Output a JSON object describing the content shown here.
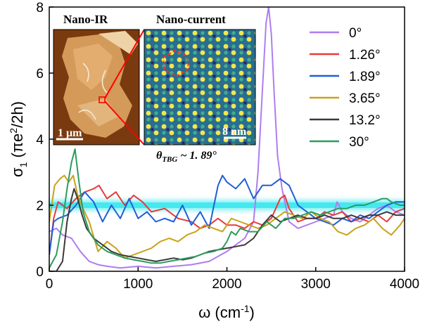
{
  "chart_data": {
    "type": "line",
    "title": "",
    "xlabel": "ω (cm",
    "xlabel_sup": "-1",
    "xlabel_close": ")",
    "ylabel": "σ",
    "ylabel_sub": "1",
    "ylabel_unit": " (πe",
    "ylabel_unit_sup": "2",
    "ylabel_unit_end": "/2h)",
    "xlim": [
      0,
      4000
    ],
    "ylim": [
      0,
      8
    ],
    "xticks": [
      0,
      1000,
      2000,
      3000,
      4000
    ],
    "yticks": [
      0,
      2,
      4,
      6,
      8
    ],
    "grid": false,
    "legend_position": "top-right",
    "universal_value": 2,
    "series": [
      {
        "name": "0°",
        "color": "#b07cf0",
        "x": [
          0,
          80,
          150,
          250,
          350,
          450,
          550,
          650,
          800,
          1000,
          1200,
          1400,
          1600,
          1800,
          2000,
          2200,
          2300,
          2350,
          2400,
          2440,
          2470,
          2500,
          2530,
          2570,
          2620,
          2700,
          2800,
          3000,
          3200,
          3240,
          3300,
          3400,
          3500,
          3600,
          3700,
          3800,
          3900,
          4000
        ],
        "y": [
          1.2,
          1.3,
          1.1,
          1.0,
          0.6,
          0.3,
          0.2,
          0.15,
          0.1,
          0.15,
          0.1,
          0.15,
          0.2,
          0.3,
          0.6,
          1.0,
          1.5,
          3.0,
          5.5,
          7.5,
          8.0,
          7.2,
          5.5,
          3.5,
          2.5,
          1.5,
          1.3,
          1.5,
          1.7,
          2.1,
          1.8,
          1.6,
          1.5,
          1.7,
          1.9,
          2.0,
          1.8,
          1.7
        ]
      },
      {
        "name": "1.26°",
        "color": "#e83a3a",
        "x": [
          0,
          50,
          100,
          200,
          300,
          400,
          500,
          560,
          650,
          750,
          850,
          950,
          1050,
          1150,
          1300,
          1450,
          1600,
          1700,
          1800,
          1900,
          2000,
          2100,
          2200,
          2300,
          2400,
          2500,
          2600,
          2650,
          2700,
          2800,
          2900,
          3000,
          3100,
          3200,
          3300,
          3400,
          3500,
          3600,
          3700,
          3800,
          3900,
          4000
        ],
        "y": [
          0.5,
          1.6,
          2.1,
          1.9,
          2.2,
          2.4,
          2.5,
          2.6,
          2.2,
          2.4,
          2.0,
          2.3,
          2.1,
          1.8,
          1.9,
          1.6,
          1.5,
          1.3,
          1.4,
          1.6,
          1.4,
          1.4,
          1.3,
          1.5,
          1.4,
          1.6,
          2.2,
          2.3,
          1.9,
          1.5,
          1.6,
          1.6,
          1.8,
          1.7,
          1.8,
          1.5,
          1.6,
          1.5,
          1.7,
          1.5,
          1.8,
          1.9
        ]
      },
      {
        "name": "1.89°",
        "color": "#1f5fd6",
        "x": [
          0,
          50,
          100,
          200,
          300,
          400,
          500,
          600,
          700,
          800,
          900,
          1000,
          1100,
          1200,
          1300,
          1400,
          1500,
          1600,
          1700,
          1800,
          1900,
          1950,
          2000,
          2100,
          2200,
          2300,
          2400,
          2500,
          2600,
          2700,
          2800,
          2900,
          3000,
          3100,
          3200,
          3300,
          3400,
          3500,
          3600,
          3700,
          3800,
          3900,
          4000
        ],
        "y": [
          0.5,
          1.5,
          1.6,
          1.7,
          2.0,
          2.4,
          2.1,
          1.5,
          2.0,
          1.6,
          2.2,
          1.6,
          1.8,
          1.5,
          1.6,
          1.5,
          2.0,
          1.4,
          1.8,
          1.3,
          2.6,
          2.9,
          2.7,
          2.5,
          2.8,
          2.2,
          2.6,
          2.6,
          2.8,
          2.6,
          2.0,
          1.8,
          1.6,
          1.5,
          1.4,
          1.6,
          1.5,
          1.7,
          1.6,
          1.8,
          2.0,
          2.1,
          2.1
        ]
      },
      {
        "name": "3.65°",
        "color": "#c9a21c",
        "x": [
          0,
          60,
          120,
          170,
          220,
          270,
          320,
          380,
          450,
          550,
          650,
          750,
          850,
          950,
          1050,
          1150,
          1250,
          1350,
          1450,
          1550,
          1650,
          1750,
          1850,
          1950,
          2050,
          2150,
          2250,
          2350,
          2450,
          2550,
          2650,
          2750,
          2850,
          2950,
          3050,
          3150,
          3250,
          3350,
          3450,
          3550,
          3650,
          3750,
          3850,
          3950,
          4000
        ],
        "y": [
          1.5,
          2.6,
          2.8,
          2.9,
          2.7,
          2.9,
          2.3,
          1.9,
          1.5,
          0.6,
          0.9,
          0.7,
          0.4,
          0.5,
          0.6,
          0.7,
          0.9,
          1.0,
          0.9,
          1.1,
          1.2,
          1.4,
          1.3,
          1.2,
          1.6,
          1.5,
          1.4,
          1.3,
          1.4,
          1.6,
          1.8,
          1.7,
          1.6,
          1.8,
          1.6,
          1.5,
          1.2,
          1.1,
          1.3,
          1.4,
          1.6,
          1.3,
          1.1,
          1.4,
          1.6
        ]
      },
      {
        "name": "13.2°",
        "color": "#3a3a3a",
        "x": [
          0,
          80,
          150,
          200,
          250,
          280,
          320,
          370,
          420,
          500,
          600,
          700,
          800,
          900,
          1000,
          1100,
          1200,
          1300,
          1400,
          1500,
          1600,
          1700,
          1800,
          1900,
          2000,
          2100,
          2200,
          2300,
          2400,
          2500,
          2600,
          2700,
          2800,
          2900,
          3000,
          3100,
          3200,
          3300,
          3400,
          3500,
          3600,
          3700,
          3800,
          3900,
          4000
        ],
        "y": [
          0,
          0,
          0.3,
          1.5,
          2.2,
          2.5,
          2.2,
          1.7,
          1.3,
          1.0,
          0.8,
          0.6,
          0.5,
          0.45,
          0.4,
          0.35,
          0.3,
          0.35,
          0.4,
          0.35,
          0.4,
          0.5,
          0.6,
          0.65,
          0.7,
          0.75,
          0.8,
          1.0,
          1.4,
          1.7,
          1.5,
          1.6,
          1.7,
          1.6,
          1.6,
          1.7,
          1.6,
          1.6,
          1.7,
          1.6,
          1.7,
          1.7,
          1.8,
          1.7,
          1.7
        ]
      },
      {
        "name": "30°",
        "color": "#2e9b5e",
        "x": [
          0,
          80,
          150,
          200,
          250,
          290,
          330,
          380,
          450,
          550,
          650,
          750,
          850,
          950,
          1050,
          1150,
          1250,
          1350,
          1450,
          1550,
          1650,
          1750,
          1850,
          1950,
          2000,
          2050,
          2100,
          2150,
          2250,
          2350,
          2450,
          2550,
          2650,
          2750,
          2850,
          2950,
          3050,
          3150,
          3250,
          3350,
          3450,
          3550,
          3650,
          3750,
          3800,
          3850,
          3950,
          4000
        ],
        "y": [
          0.1,
          0.5,
          1.5,
          2.5,
          3.3,
          3.7,
          2.8,
          1.8,
          1.2,
          0.8,
          0.6,
          0.5,
          0.4,
          0.35,
          0.3,
          0.25,
          0.25,
          0.3,
          0.35,
          0.4,
          0.45,
          0.55,
          0.6,
          0.7,
          0.9,
          1.2,
          1.1,
          1.3,
          1.2,
          1.2,
          1.5,
          1.3,
          1.6,
          1.6,
          1.7,
          1.8,
          1.7,
          1.8,
          1.9,
          1.9,
          2.0,
          2.0,
          2.1,
          2.2,
          2.2,
          2.1,
          2.0,
          2.0
        ]
      }
    ]
  },
  "inset": {
    "left_title": "Nano-IR",
    "right_title": "Nano-current",
    "left_scale": "1 μm",
    "right_scale": "8 nm",
    "theta_symbol": "θ",
    "theta_sub": "TBG",
    "theta_value": " ~ 1. 89°"
  },
  "colors": {
    "universal_band": "#38e6ee",
    "connector": "#ff0000"
  }
}
